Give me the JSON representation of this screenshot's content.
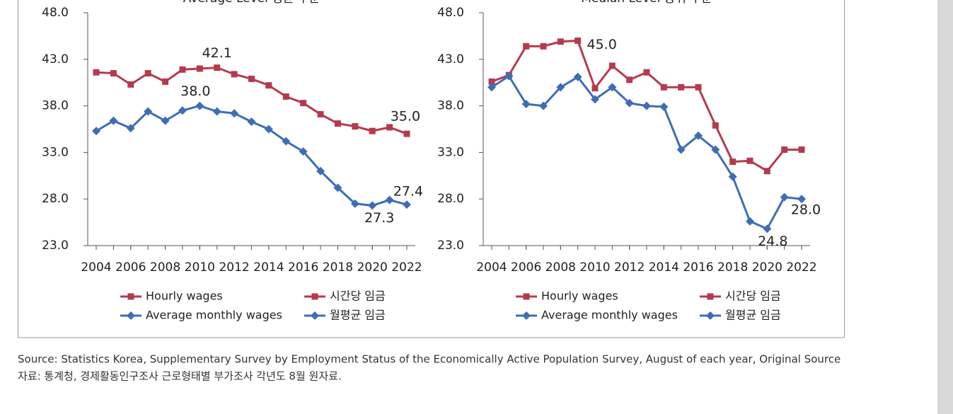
{
  "chart_data": [
    {
      "type": "line",
      "title": "Average Level 평균 수준",
      "x": [
        2004,
        2005,
        2006,
        2007,
        2008,
        2009,
        2010,
        2011,
        2012,
        2013,
        2014,
        2015,
        2016,
        2017,
        2018,
        2019,
        2020,
        2021,
        2022
      ],
      "xlim": [
        2004,
        2022
      ],
      "xticks": [
        2004,
        2006,
        2008,
        2010,
        2012,
        2014,
        2016,
        2018,
        2020,
        2022
      ],
      "ylim": [
        23,
        48
      ],
      "yticks": [
        {
          "value": 23,
          "label": "23.0"
        },
        {
          "value": 28,
          "label": "28.0"
        },
        {
          "value": 33,
          "label": "33.0"
        },
        {
          "value": 38,
          "label": "38.0"
        },
        {
          "value": 43,
          "label": "43.0"
        },
        {
          "value": 48,
          "label": "48.0"
        }
      ],
      "series": [
        {
          "name": "Hourly wages",
          "name_ko": "시간당 임금",
          "color": "#b53a4e",
          "marker": "square",
          "values": [
            41.6,
            41.5,
            40.3,
            41.5,
            40.6,
            41.9,
            42.0,
            42.1,
            41.4,
            40.9,
            40.2,
            39.0,
            38.3,
            37.1,
            36.1,
            35.8,
            35.3,
            35.7,
            35.0
          ],
          "value_labels": [
            null,
            null,
            null,
            null,
            null,
            null,
            null,
            "42.1",
            null,
            null,
            null,
            null,
            null,
            null,
            null,
            null,
            null,
            null,
            "35.0"
          ]
        },
        {
          "name": "Average monthly wages",
          "name_ko": "월평균 임금",
          "color": "#3e6db5",
          "marker": "diamond",
          "values": [
            35.3,
            36.4,
            35.6,
            37.4,
            36.4,
            37.5,
            38.0,
            37.4,
            37.2,
            36.3,
            35.5,
            34.2,
            33.1,
            31.0,
            29.2,
            27.5,
            27.3,
            27.9,
            27.4
          ],
          "value_labels": [
            null,
            null,
            null,
            null,
            null,
            null,
            "38.0",
            null,
            null,
            null,
            null,
            null,
            null,
            null,
            null,
            null,
            "27.3",
            null,
            "27.4"
          ]
        }
      ]
    },
    {
      "type": "line",
      "title": "Median Level 중위 수준",
      "x": [
        2004,
        2005,
        2006,
        2007,
        2008,
        2009,
        2010,
        2011,
        2012,
        2013,
        2014,
        2015,
        2016,
        2017,
        2018,
        2019,
        2020,
        2021,
        2022
      ],
      "xlim": [
        2004,
        2022
      ],
      "xticks": [
        2004,
        2006,
        2008,
        2010,
        2012,
        2014,
        2016,
        2018,
        2020,
        2022
      ],
      "ylim": [
        23,
        48
      ],
      "yticks": [
        {
          "value": 23,
          "label": "23.0"
        },
        {
          "value": 28,
          "label": "28.0"
        },
        {
          "value": 33,
          "label": "33.0"
        },
        {
          "value": 38,
          "label": "38.0"
        },
        {
          "value": 43,
          "label": "43.0"
        },
        {
          "value": 48,
          "label": "48.0"
        }
      ],
      "series": [
        {
          "name": "Hourly wages",
          "name_ko": "시간당 임금",
          "color": "#b53a4e",
          "marker": "square",
          "values": [
            40.6,
            41.3,
            44.4,
            44.4,
            44.9,
            45.0,
            39.9,
            42.3,
            40.8,
            41.6,
            40.0,
            40.0,
            40.0,
            35.9,
            32.0,
            32.1,
            31.0,
            33.3,
            33.3
          ],
          "value_labels": [
            null,
            null,
            null,
            null,
            null,
            "45.0",
            null,
            null,
            null,
            null,
            null,
            null,
            null,
            null,
            null,
            null,
            null,
            null,
            null
          ]
        },
        {
          "name": "Average monthly wages",
          "name_ko": "월평균 임금",
          "color": "#3e6db5",
          "marker": "diamond",
          "values": [
            40.0,
            41.2,
            38.2,
            38.0,
            40.0,
            41.1,
            38.7,
            40.0,
            38.3,
            38.0,
            37.9,
            33.3,
            34.8,
            33.3,
            30.4,
            25.6,
            24.8,
            28.2,
            28.0
          ],
          "value_labels": [
            null,
            null,
            null,
            null,
            null,
            null,
            null,
            null,
            null,
            null,
            null,
            null,
            null,
            null,
            null,
            null,
            "24.8",
            null,
            "28.0"
          ]
        }
      ]
    }
  ],
  "source": [
    "Source: Statistics Korea, Supplementary Survey by Employment Status of the Economically Active Population Survey,  August of each year, Original Source",
    "자료: 통계청, 경제활동인구조사 근로형태별 부가조사 각년도 8월 원자료."
  ]
}
